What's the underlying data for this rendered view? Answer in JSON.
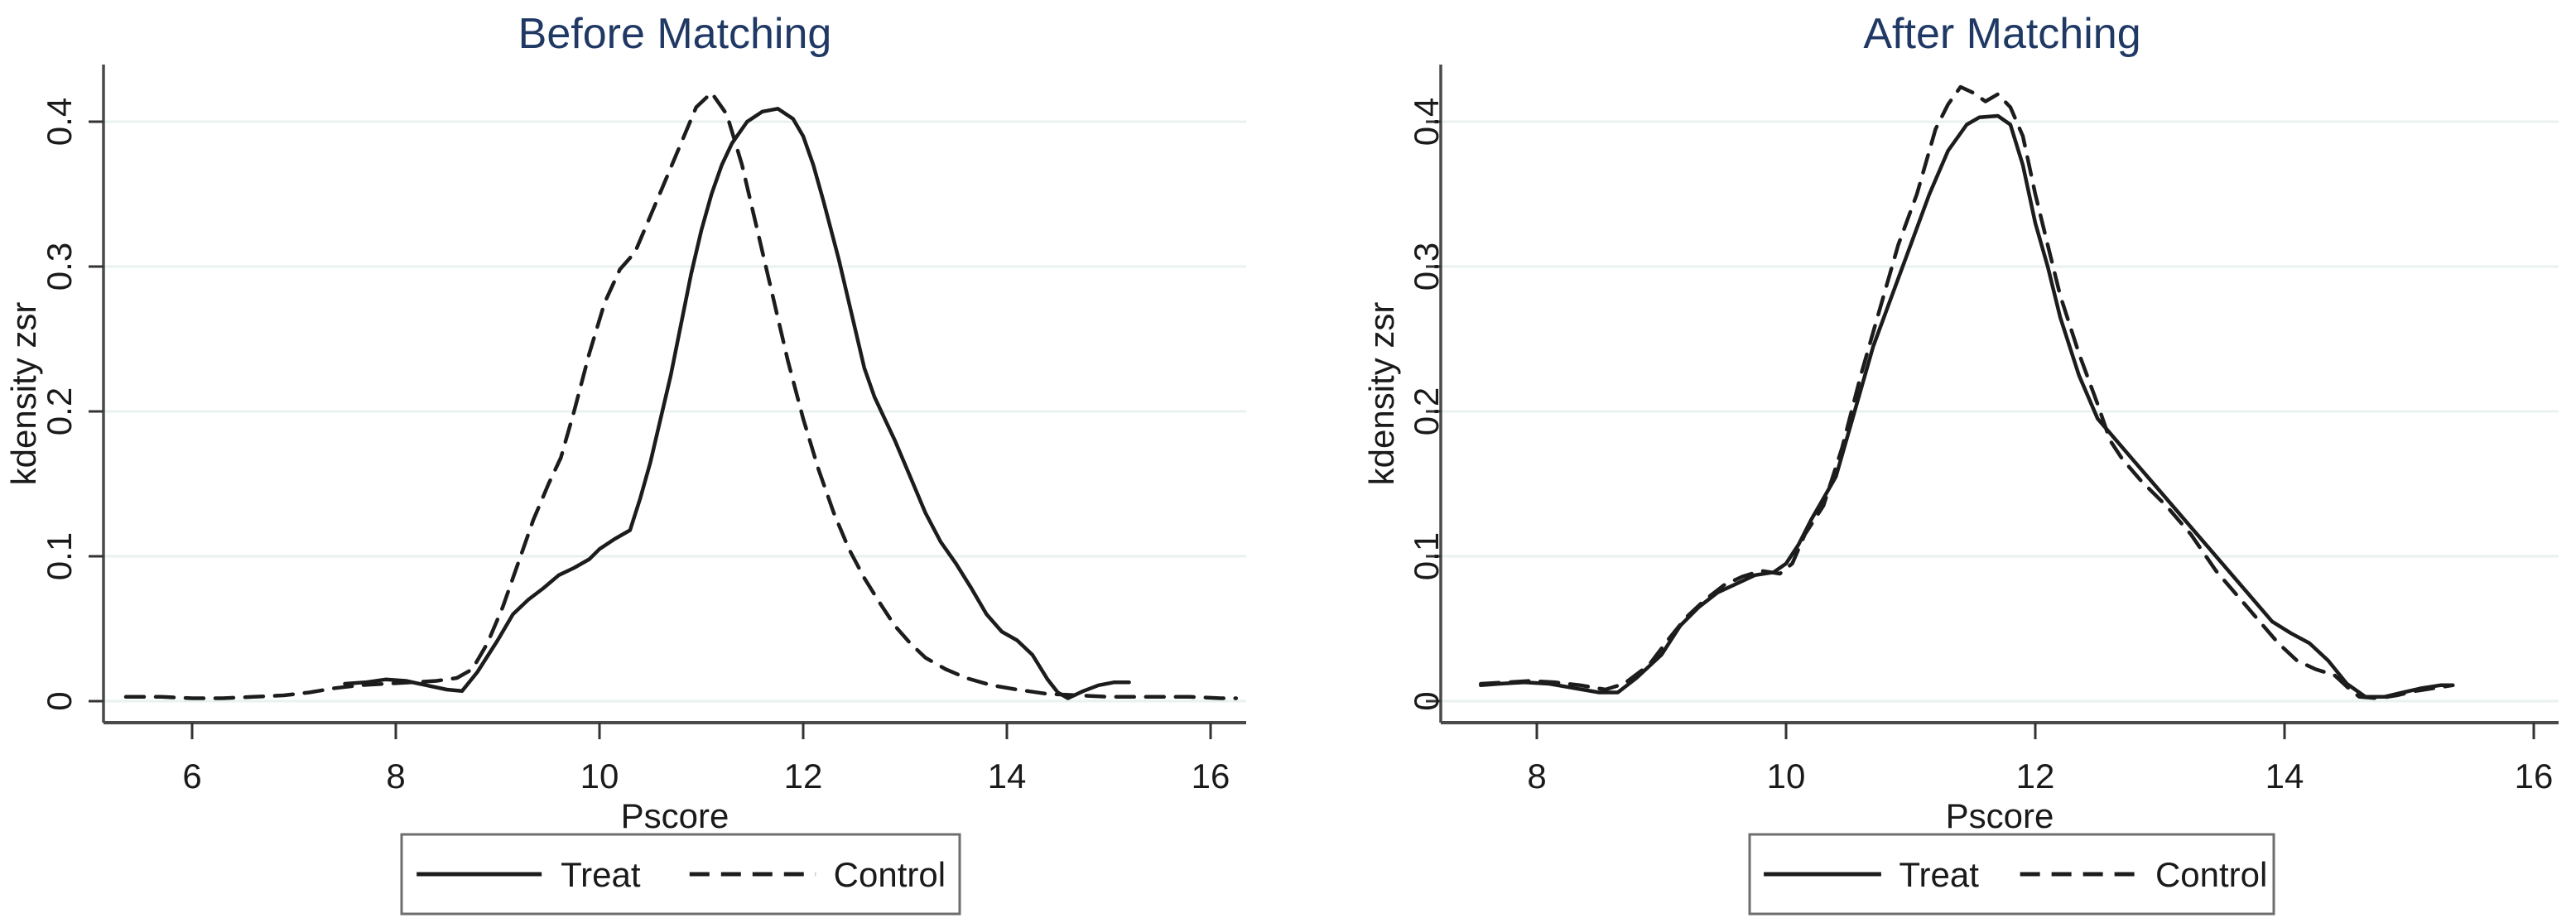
{
  "colors": {
    "background": "#ffffff",
    "title": "#1f3864",
    "curve": "#1c1c1c",
    "axis": "#4a4a4a",
    "tick": "#333333",
    "grid": "#e9f1f1",
    "text": "#1a1a1a",
    "legend_border": "#6e6e6e",
    "legend_fill": "#ffffff"
  },
  "legend": {
    "items": [
      {
        "label": "Treat",
        "style": "solid"
      },
      {
        "label": "Control",
        "style": "dashed"
      }
    ]
  },
  "chart_data": [
    {
      "type": "line",
      "title": "Before Matching",
      "xlabel": "Pscore",
      "ylabel": "kdensity zsr",
      "xticks": [
        6,
        8,
        10,
        12,
        14,
        16
      ],
      "xtick_labels": [
        "6",
        "8",
        "10",
        "12",
        "14",
        "16"
      ],
      "yticks": [
        0,
        0.1,
        0.2,
        0.3,
        0.4
      ],
      "ytick_labels": [
        "0",
        "0.1",
        "0.2",
        "0.3",
        "0.4"
      ],
      "xlim": [
        5.1,
        16.35
      ],
      "ylim": [
        -0.025,
        0.44
      ],
      "grid": "horizontal",
      "legend_position": "bottom-center",
      "series": [
        {
          "name": "Treat",
          "style": "solid",
          "points": [
            [
              7.5,
              0.012
            ],
            [
              7.7,
              0.013
            ],
            [
              7.9,
              0.015
            ],
            [
              8.1,
              0.014
            ],
            [
              8.3,
              0.011
            ],
            [
              8.5,
              0.008
            ],
            [
              8.65,
              0.007
            ],
            [
              8.8,
              0.02
            ],
            [
              9.0,
              0.042
            ],
            [
              9.15,
              0.06
            ],
            [
              9.3,
              0.07
            ],
            [
              9.45,
              0.078
            ],
            [
              9.6,
              0.087
            ],
            [
              9.75,
              0.092
            ],
            [
              9.9,
              0.098
            ],
            [
              10.0,
              0.105
            ],
            [
              10.15,
              0.112
            ],
            [
              10.3,
              0.118
            ],
            [
              10.4,
              0.14
            ],
            [
              10.5,
              0.165
            ],
            [
              10.6,
              0.195
            ],
            [
              10.7,
              0.225
            ],
            [
              10.8,
              0.26
            ],
            [
              10.9,
              0.295
            ],
            [
              11.0,
              0.325
            ],
            [
              11.1,
              0.35
            ],
            [
              11.2,
              0.37
            ],
            [
              11.3,
              0.385
            ],
            [
              11.45,
              0.4
            ],
            [
              11.6,
              0.407
            ],
            [
              11.75,
              0.409
            ],
            [
              11.9,
              0.402
            ],
            [
              12.0,
              0.39
            ],
            [
              12.1,
              0.37
            ],
            [
              12.2,
              0.345
            ],
            [
              12.35,
              0.305
            ],
            [
              12.5,
              0.26
            ],
            [
              12.6,
              0.23
            ],
            [
              12.7,
              0.21
            ],
            [
              12.8,
              0.195
            ],
            [
              12.9,
              0.18
            ],
            [
              13.05,
              0.155
            ],
            [
              13.2,
              0.13
            ],
            [
              13.35,
              0.11
            ],
            [
              13.5,
              0.095
            ],
            [
              13.65,
              0.078
            ],
            [
              13.8,
              0.06
            ],
            [
              13.95,
              0.048
            ],
            [
              14.1,
              0.042
            ],
            [
              14.25,
              0.032
            ],
            [
              14.4,
              0.015
            ],
            [
              14.5,
              0.006
            ],
            [
              14.6,
              0.002
            ],
            [
              14.75,
              0.007
            ],
            [
              14.9,
              0.011
            ],
            [
              15.05,
              0.013
            ],
            [
              15.2,
              0.013
            ]
          ]
        },
        {
          "name": "Control",
          "style": "dashed",
          "points": [
            [
              5.35,
              0.003
            ],
            [
              5.7,
              0.003
            ],
            [
              6.0,
              0.002
            ],
            [
              6.3,
              0.002
            ],
            [
              6.6,
              0.003
            ],
            [
              6.9,
              0.004
            ],
            [
              7.15,
              0.006
            ],
            [
              7.4,
              0.009
            ],
            [
              7.65,
              0.011
            ],
            [
              7.9,
              0.012
            ],
            [
              8.15,
              0.013
            ],
            [
              8.4,
              0.014
            ],
            [
              8.6,
              0.016
            ],
            [
              8.75,
              0.022
            ],
            [
              8.9,
              0.04
            ],
            [
              9.05,
              0.065
            ],
            [
              9.2,
              0.095
            ],
            [
              9.35,
              0.125
            ],
            [
              9.5,
              0.15
            ],
            [
              9.62,
              0.168
            ],
            [
              9.75,
              0.2
            ],
            [
              9.9,
              0.24
            ],
            [
              10.05,
              0.275
            ],
            [
              10.2,
              0.298
            ],
            [
              10.35,
              0.31
            ],
            [
              10.5,
              0.335
            ],
            [
              10.65,
              0.36
            ],
            [
              10.8,
              0.385
            ],
            [
              10.95,
              0.41
            ],
            [
              11.1,
              0.42
            ],
            [
              11.25,
              0.405
            ],
            [
              11.4,
              0.37
            ],
            [
              11.55,
              0.325
            ],
            [
              11.7,
              0.28
            ],
            [
              11.85,
              0.235
            ],
            [
              12.0,
              0.195
            ],
            [
              12.15,
              0.16
            ],
            [
              12.3,
              0.13
            ],
            [
              12.45,
              0.105
            ],
            [
              12.6,
              0.085
            ],
            [
              12.75,
              0.068
            ],
            [
              12.9,
              0.052
            ],
            [
              13.05,
              0.04
            ],
            [
              13.2,
              0.03
            ],
            [
              13.4,
              0.022
            ],
            [
              13.6,
              0.016
            ],
            [
              13.85,
              0.011
            ],
            [
              14.1,
              0.008
            ],
            [
              14.4,
              0.005
            ],
            [
              14.7,
              0.004
            ],
            [
              15.0,
              0.003
            ],
            [
              15.4,
              0.003
            ],
            [
              15.8,
              0.003
            ],
            [
              16.1,
              0.002
            ],
            [
              16.25,
              0.002
            ]
          ]
        }
      ]
    },
    {
      "type": "line",
      "title": "After Matching",
      "xlabel": "Pscore",
      "ylabel": "kdensity zsr",
      "xticks": [
        8,
        10,
        12,
        14,
        16
      ],
      "xtick_labels": [
        "8",
        "10",
        "12",
        "14",
        "16"
      ],
      "yticks": [
        0,
        0.1,
        0.2,
        0.3,
        0.4
      ],
      "ytick_labels": [
        "0",
        "0.1",
        "0.2",
        "0.3",
        "0.4"
      ],
      "xlim": [
        7.2,
        16.2
      ],
      "ylim": [
        -0.025,
        0.44
      ],
      "grid": "horizontal",
      "legend_position": "bottom-center",
      "series": [
        {
          "name": "Treat",
          "style": "solid",
          "points": [
            [
              7.55,
              0.011
            ],
            [
              7.7,
              0.012
            ],
            [
              7.9,
              0.013
            ],
            [
              8.1,
              0.012
            ],
            [
              8.3,
              0.009
            ],
            [
              8.5,
              0.006
            ],
            [
              8.65,
              0.006
            ],
            [
              8.8,
              0.016
            ],
            [
              9.0,
              0.032
            ],
            [
              9.15,
              0.052
            ],
            [
              9.3,
              0.065
            ],
            [
              9.45,
              0.075
            ],
            [
              9.6,
              0.081
            ],
            [
              9.75,
              0.087
            ],
            [
              9.9,
              0.089
            ],
            [
              10.0,
              0.095
            ],
            [
              10.1,
              0.108
            ],
            [
              10.2,
              0.125
            ],
            [
              10.3,
              0.14
            ],
            [
              10.4,
              0.155
            ],
            [
              10.55,
              0.2
            ],
            [
              10.7,
              0.245
            ],
            [
              10.85,
              0.28
            ],
            [
              11.0,
              0.315
            ],
            [
              11.15,
              0.35
            ],
            [
              11.3,
              0.38
            ],
            [
              11.45,
              0.398
            ],
            [
              11.55,
              0.403
            ],
            [
              11.7,
              0.404
            ],
            [
              11.8,
              0.398
            ],
            [
              11.9,
              0.37
            ],
            [
              12.0,
              0.33
            ],
            [
              12.1,
              0.3
            ],
            [
              12.2,
              0.265
            ],
            [
              12.35,
              0.225
            ],
            [
              12.5,
              0.195
            ],
            [
              12.65,
              0.18
            ],
            [
              12.8,
              0.165
            ],
            [
              12.95,
              0.15
            ],
            [
              13.15,
              0.13
            ],
            [
              13.35,
              0.11
            ],
            [
              13.55,
              0.09
            ],
            [
              13.75,
              0.07
            ],
            [
              13.9,
              0.055
            ],
            [
              14.05,
              0.047
            ],
            [
              14.2,
              0.04
            ],
            [
              14.35,
              0.028
            ],
            [
              14.5,
              0.012
            ],
            [
              14.65,
              0.003
            ],
            [
              14.8,
              0.003
            ],
            [
              14.95,
              0.006
            ],
            [
              15.1,
              0.009
            ],
            [
              15.25,
              0.011
            ],
            [
              15.35,
              0.011
            ]
          ]
        },
        {
          "name": "Control",
          "style": "dashed",
          "points": [
            [
              7.55,
              0.012
            ],
            [
              7.75,
              0.013
            ],
            [
              7.95,
              0.014
            ],
            [
              8.15,
              0.013
            ],
            [
              8.35,
              0.011
            ],
            [
              8.55,
              0.008
            ],
            [
              8.7,
              0.012
            ],
            [
              8.9,
              0.025
            ],
            [
              9.05,
              0.042
            ],
            [
              9.2,
              0.058
            ],
            [
              9.35,
              0.07
            ],
            [
              9.5,
              0.08
            ],
            [
              9.65,
              0.086
            ],
            [
              9.8,
              0.09
            ],
            [
              9.95,
              0.088
            ],
            [
              10.05,
              0.095
            ],
            [
              10.15,
              0.115
            ],
            [
              10.3,
              0.135
            ],
            [
              10.45,
              0.175
            ],
            [
              10.6,
              0.225
            ],
            [
              10.75,
              0.27
            ],
            [
              10.9,
              0.315
            ],
            [
              11.05,
              0.35
            ],
            [
              11.2,
              0.395
            ],
            [
              11.3,
              0.412
            ],
            [
              11.4,
              0.424
            ],
            [
              11.5,
              0.42
            ],
            [
              11.6,
              0.414
            ],
            [
              11.7,
              0.419
            ],
            [
              11.8,
              0.41
            ],
            [
              11.9,
              0.39
            ],
            [
              12.0,
              0.35
            ],
            [
              12.1,
              0.315
            ],
            [
              12.2,
              0.28
            ],
            [
              12.35,
              0.24
            ],
            [
              12.5,
              0.205
            ],
            [
              12.6,
              0.18
            ],
            [
              12.7,
              0.167
            ],
            [
              12.85,
              0.152
            ],
            [
              13.05,
              0.135
            ],
            [
              13.25,
              0.115
            ],
            [
              13.45,
              0.09
            ],
            [
              13.65,
              0.07
            ],
            [
              13.8,
              0.055
            ],
            [
              13.95,
              0.04
            ],
            [
              14.1,
              0.028
            ],
            [
              14.25,
              0.022
            ],
            [
              14.4,
              0.018
            ],
            [
              14.5,
              0.01
            ],
            [
              14.6,
              0.003
            ],
            [
              14.75,
              0.002
            ],
            [
              14.9,
              0.004
            ],
            [
              15.05,
              0.007
            ],
            [
              15.2,
              0.009
            ],
            [
              15.35,
              0.011
            ]
          ]
        }
      ]
    }
  ]
}
